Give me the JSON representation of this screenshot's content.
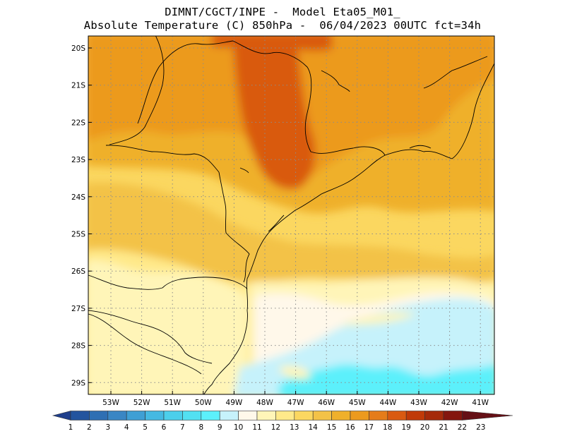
{
  "header": {
    "line1": "DIMNT/CGCT/INPE -  Model Eta05_M01_",
    "line2": "Absolute Temperature (C) 850hPa -  06/04/2023 00UTC fct=34h"
  },
  "map": {
    "lat_labels": [
      "20S",
      "21S",
      "22S",
      "23S",
      "24S",
      "25S",
      "26S",
      "27S",
      "28S",
      "29S"
    ],
    "lon_labels": [
      "53W",
      "52W",
      "51W",
      "50W",
      "49W",
      "48W",
      "47W",
      "46W",
      "45W",
      "44W",
      "43W",
      "42W",
      "41W"
    ],
    "lat_range": [
      -29.4,
      -19.8
    ],
    "lon_range": [
      -53.8,
      -40.6
    ],
    "grid": "dotted"
  },
  "colorbar": {
    "labels": [
      "1",
      "2",
      "3",
      "4",
      "5",
      "6",
      "7",
      "8",
      "9",
      "10",
      "11",
      "12",
      "13",
      "14",
      "15",
      "16",
      "17",
      "18",
      "19",
      "20",
      "21",
      "22",
      "23"
    ],
    "colors": [
      "#1f3f8c",
      "#23549e",
      "#2f6fb3",
      "#3a86c4",
      "#3f9fd4",
      "#45b9e2",
      "#4ccfeb",
      "#52e0f2",
      "#5cf0fb",
      "#c6f2fb",
      "#fff8ea",
      "#fff5b8",
      "#ffe98a",
      "#fbd760",
      "#f3c247",
      "#efb02b",
      "#ec9a1e",
      "#e57c1a",
      "#d95a11",
      "#c03a08",
      "#a52a0a",
      "#84160e",
      "#651016"
    ]
  }
}
